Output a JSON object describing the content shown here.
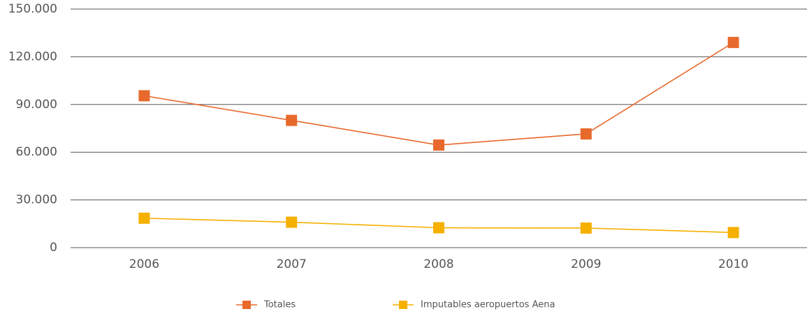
{
  "chart_data": {
    "type": "line",
    "categories": [
      "2006",
      "2007",
      "2008",
      "2009",
      "2010"
    ],
    "series": [
      {
        "name": "Totales",
        "color": "#e8692c",
        "values": [
          95500,
          80000,
          64500,
          71500,
          129000
        ]
      },
      {
        "name": "Imputables aeropuertos Aena",
        "color": "#f5b000",
        "values": [
          18500,
          16000,
          12500,
          12300,
          9500
        ]
      }
    ],
    "ylim": [
      0,
      150000
    ],
    "yticks": [
      0,
      {
        "value": 30000,
        "label": "30.000"
      },
      {
        "value": 60000,
        "label": "60.000"
      },
      {
        "value": 90000,
        "label": "90.000"
      },
      {
        "value": 120000,
        "label": "120.000"
      },
      {
        "value": 150000,
        "label": "150.000"
      }
    ],
    "grid": true,
    "legend": "bottom"
  }
}
